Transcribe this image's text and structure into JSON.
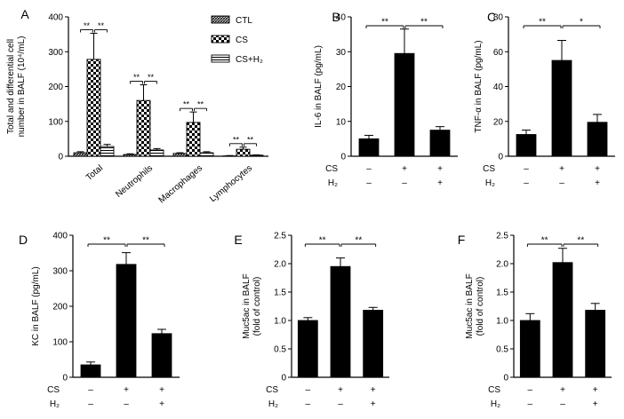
{
  "colors": {
    "ink": "#000000",
    "background": "#ffffff"
  },
  "panels": [
    {
      "id": "A",
      "type": "bar",
      "panel_label": "A",
      "ylabel_lines": [
        "Total and differential cell",
        "number in BALF (10⁴/mL)"
      ],
      "ylim": [
        0,
        400
      ],
      "yticks": [
        "0",
        "100",
        "200",
        "300",
        "400"
      ],
      "categories": [
        "Total",
        "Neutrophils",
        "Macrophages",
        "Lymphocytes"
      ],
      "legend": [
        "CTL",
        "CS",
        "CS+H₂"
      ],
      "series": [
        {
          "name": "CTL",
          "pattern": "hatchDense",
          "values": [
            10,
            5,
            8,
            1
          ],
          "errors": [
            3,
            2,
            2,
            1
          ]
        },
        {
          "name": "CS",
          "pattern": "checker",
          "values": [
            278,
            160,
            97,
            20
          ],
          "errors": [
            75,
            45,
            30,
            6
          ]
        },
        {
          "name": "CS+H2",
          "pattern": "hlines",
          "values": [
            28,
            18,
            10,
            3
          ],
          "errors": [
            6,
            4,
            3,
            1
          ]
        }
      ],
      "significance": [
        {
          "category": 0,
          "left": "**",
          "right": "**"
        },
        {
          "category": 1,
          "left": "**",
          "right": "**"
        },
        {
          "category": 2,
          "left": "**",
          "right": "**"
        },
        {
          "category": 3,
          "left": "**",
          "right": "**"
        }
      ]
    },
    {
      "id": "B",
      "type": "bar",
      "panel_label": "B",
      "ylabel": "IL-6 in BALF (pg/mL)",
      "ylim": [
        0,
        40
      ],
      "yticks": [
        "0",
        "10",
        "20",
        "30",
        "40"
      ],
      "values": [
        5,
        29.5,
        7.5
      ],
      "errors": [
        1,
        7,
        1
      ],
      "sig_left": "**",
      "sig_right": "**",
      "row_labels": [
        "CS",
        "H₂"
      ],
      "row_cs": [
        "–",
        "+",
        "+"
      ],
      "row_h2": [
        "–",
        "–",
        "+"
      ]
    },
    {
      "id": "C",
      "type": "bar",
      "panel_label": "C",
      "ylabel": "TNF-α in BALF (pg/mL)",
      "ylim": [
        0,
        80
      ],
      "yticks": [
        "0",
        "20",
        "40",
        "60",
        "80"
      ],
      "values": [
        12.5,
        55,
        19.5
      ],
      "errors": [
        2.5,
        11.5,
        4.5
      ],
      "sig_left": "**",
      "sig_right": "*",
      "row_labels": [
        "CS",
        "H₂"
      ],
      "row_cs": [
        "–",
        "+",
        "+"
      ],
      "row_h2": [
        "–",
        "–",
        "+"
      ]
    },
    {
      "id": "D",
      "type": "bar",
      "panel_label": "D",
      "ylabel": "KC in BALF (pg/mL)",
      "ylim": [
        0,
        400
      ],
      "yticks": [
        "0",
        "100",
        "200",
        "300",
        "400"
      ],
      "values": [
        35,
        318,
        123
      ],
      "errors": [
        8,
        33,
        12
      ],
      "sig_left": "**",
      "sig_right": "**",
      "row_labels": [
        "CS",
        "H₂"
      ],
      "row_cs": [
        "–",
        "+",
        "+"
      ],
      "row_h2": [
        "–",
        "–",
        "+"
      ]
    },
    {
      "id": "E",
      "type": "bar",
      "panel_label": "E",
      "ylabel_lines": [
        "Muc5ac in BALF",
        "(fold of control)"
      ],
      "ylim": [
        0,
        2.5
      ],
      "yticks": [
        "0",
        "0.5",
        "1.0",
        "1.5",
        "2.0",
        "2.5"
      ],
      "values": [
        1.0,
        1.95,
        1.18
      ],
      "errors": [
        0.05,
        0.15,
        0.05
      ],
      "sig_left": "**",
      "sig_right": "**",
      "row_labels": [
        "CS",
        "H₂"
      ],
      "row_cs": [
        "–",
        "+",
        "+"
      ],
      "row_h2": [
        "–",
        "–",
        "+"
      ]
    },
    {
      "id": "F",
      "type": "bar",
      "panel_label": "F",
      "ylabel_lines": [
        "Muc5ac in BALF",
        "(fold of control)"
      ],
      "ylim": [
        0,
        2.5
      ],
      "yticks": [
        "0",
        "0.5",
        "1.0",
        "1.5",
        "2.0",
        "2.5"
      ],
      "values": [
        1.0,
        2.02,
        1.18
      ],
      "errors": [
        0.12,
        0.25,
        0.12
      ],
      "sig_left": "**",
      "sig_right": "**",
      "row_labels": [
        "CS",
        "H₂"
      ],
      "row_cs": [
        "–",
        "+",
        "+"
      ],
      "row_h2": [
        "–",
        "–",
        "+"
      ]
    }
  ],
  "chart_data": [
    {
      "panel": "A",
      "type": "bar",
      "title": "",
      "xlabel": "",
      "ylabel": "Total and differential cell number in BALF (10⁴/mL)",
      "ylim": [
        0,
        400
      ],
      "categories": [
        "Total",
        "Neutrophils",
        "Macrophages",
        "Lymphocytes"
      ],
      "series": [
        {
          "name": "CTL",
          "values": [
            10,
            5,
            8,
            1
          ]
        },
        {
          "name": "CS",
          "values": [
            278,
            160,
            97,
            20
          ]
        },
        {
          "name": "CS+H₂",
          "values": [
            28,
            18,
            10,
            3
          ]
        }
      ],
      "legend": "top-right"
    },
    {
      "panel": "B",
      "type": "bar",
      "ylabel": "IL-6 in BALF (pg/mL)",
      "ylim": [
        0,
        40
      ],
      "categories": [
        "CS– H₂–",
        "CS+ H₂–",
        "CS+ H₂+"
      ],
      "values": [
        5,
        29.5,
        7.5
      ]
    },
    {
      "panel": "C",
      "type": "bar",
      "ylabel": "TNF-α in BALF (pg/mL)",
      "ylim": [
        0,
        80
      ],
      "categories": [
        "CS– H₂–",
        "CS+ H₂–",
        "CS+ H₂+"
      ],
      "values": [
        12.5,
        55,
        19.5
      ]
    },
    {
      "panel": "D",
      "type": "bar",
      "ylabel": "KC in BALF (pg/mL)",
      "ylim": [
        0,
        400
      ],
      "categories": [
        "CS– H₂–",
        "CS+ H₂–",
        "CS+ H₂+"
      ],
      "values": [
        35,
        318,
        123
      ]
    },
    {
      "panel": "E",
      "type": "bar",
      "ylabel": "Muc5ac in BALF (fold of control)",
      "ylim": [
        0,
        2.5
      ],
      "categories": [
        "CS– H₂–",
        "CS+ H₂–",
        "CS+ H₂+"
      ],
      "values": [
        1.0,
        1.95,
        1.18
      ]
    },
    {
      "panel": "F",
      "type": "bar",
      "ylabel": "Muc5ac in BALF (fold of control)",
      "ylim": [
        0,
        2.5
      ],
      "categories": [
        "CS– H₂–",
        "CS+ H₂–",
        "CS+ H₂+"
      ],
      "values": [
        1.0,
        2.02,
        1.18
      ]
    }
  ]
}
